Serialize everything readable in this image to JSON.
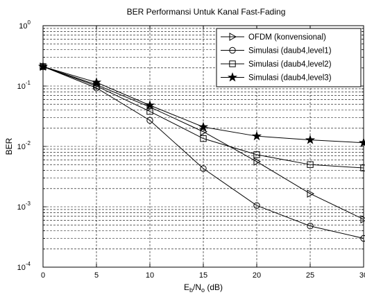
{
  "chart_data": {
    "type": "line",
    "title": "BER Performansi Untuk Kanal Fast-Fading",
    "xlabel": {
      "main": "E",
      "sub1": "b",
      "mid": "/N",
      "sub2": "o",
      "tail": " (dB)"
    },
    "ylabel": "BER",
    "xlim": [
      0,
      30
    ],
    "ylim": [
      0.0001,
      1
    ],
    "yscale": "log",
    "grid": true,
    "legend_position": "top-right",
    "x_ticks": [
      "0",
      "5",
      "10",
      "15",
      "20",
      "25",
      "30"
    ],
    "y_ticks": [
      {
        "base": "10",
        "exp": "0"
      },
      {
        "base": "10",
        "exp": "-1"
      },
      {
        "base": "10",
        "exp": "-2"
      },
      {
        "base": "10",
        "exp": "-3"
      },
      {
        "base": "10",
        "exp": "-4"
      }
    ],
    "x": [
      0,
      5,
      10,
      15,
      20,
      25,
      30
    ],
    "series": [
      {
        "name": "OFDM (konvensional)",
        "marker": "triangle-right",
        "values": [
          0.21,
          0.105,
          0.045,
          0.0175,
          0.0056,
          0.00165,
          0.00062
        ]
      },
      {
        "name": "Simulasi (daub4,level1)",
        "marker": "circle",
        "values": [
          0.21,
          0.093,
          0.027,
          0.0043,
          0.00105,
          0.00048,
          0.0003
        ]
      },
      {
        "name": "Simulasi (daub4,level2)",
        "marker": "square",
        "values": [
          0.21,
          0.1,
          0.038,
          0.0135,
          0.0073,
          0.005,
          0.0044
        ]
      },
      {
        "name": "Simulasi (daub4,level3)",
        "marker": "star",
        "values": [
          0.21,
          0.115,
          0.048,
          0.021,
          0.0148,
          0.0128,
          0.0115
        ]
      }
    ]
  }
}
